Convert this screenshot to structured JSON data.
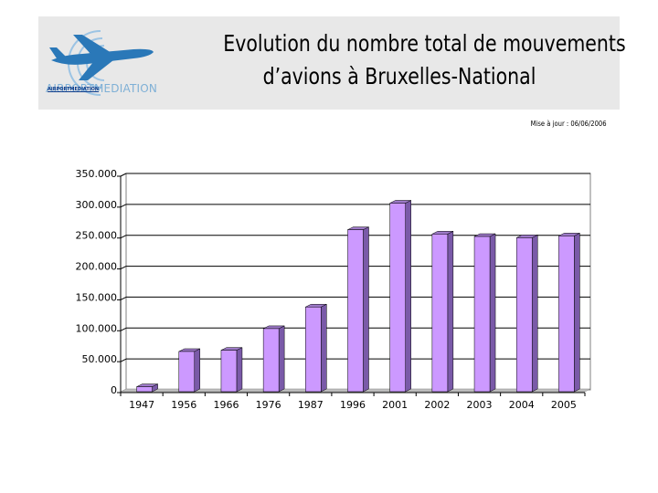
{
  "header": {
    "logo_text": "AIRPORTMEDIATION",
    "logo_small": "AIRPORTMEDIATION",
    "title_line1": "Evolution du nombre total de mouvements",
    "title_line2": "d’avions à Bruxelles-National"
  },
  "update_note": "Mise à jour : 06/06/2006",
  "colors": {
    "bar_front": "#cc99ff",
    "bar_side": "#7a5aa8",
    "bar_top": "#9d79c8",
    "header_bg": "#e8e8e8",
    "logo_blue": "#2a78b8"
  },
  "chart_data": {
    "type": "bar",
    "categories": [
      "1947",
      "1956",
      "1966",
      "1976",
      "1987",
      "1996",
      "2001",
      "2002",
      "2003",
      "2004",
      "2005"
    ],
    "values": [
      8000,
      65000,
      67000,
      102000,
      137000,
      262000,
      305000,
      255000,
      251000,
      249000,
      252000
    ],
    "ylim": [
      0,
      350000
    ],
    "yticks": [
      "0",
      "50.000",
      "100.000",
      "150.000",
      "200.000",
      "250.000",
      "300.000",
      "350.000"
    ],
    "ytick_values": [
      0,
      50000,
      100000,
      150000,
      200000,
      250000,
      300000,
      350000
    ],
    "grid": true,
    "legend": "none",
    "title": "",
    "xlabel": "",
    "ylabel": ""
  }
}
